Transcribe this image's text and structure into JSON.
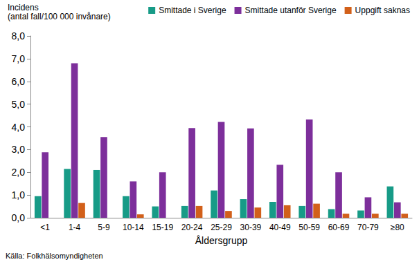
{
  "chart_data": {
    "type": "bar",
    "title": "Incidens",
    "subtitle": "(antal fall/100 000 invånare)",
    "x_label": "Åldersgrupp",
    "annotations": [
      "Källa: Folkhälsomyndigheten"
    ],
    "categories": [
      "<1",
      "1-4",
      "5-9",
      "10-14",
      "15-19",
      "20-24",
      "25-29",
      "30-39",
      "40-49",
      "50-59",
      "60-69",
      "70-79",
      "≥80"
    ],
    "series": [
      {
        "name": "Smittade i Sverige",
        "color": "#179b87",
        "values": [
          0.95,
          2.15,
          2.1,
          0.95,
          0.5,
          0.52,
          1.2,
          0.82,
          0.7,
          0.52,
          0.38,
          0.32,
          1.38
        ]
      },
      {
        "name": "Smittade utanför Sverige",
        "color": "#7d2f9b",
        "values": [
          2.88,
          6.8,
          3.55,
          1.6,
          2.0,
          3.95,
          4.22,
          3.93,
          2.33,
          4.33,
          2.0,
          0.9,
          0.68
        ]
      },
      {
        "name": "Uppgift saknas",
        "color": "#d2601a",
        "values": [
          0,
          0.65,
          0,
          0.15,
          0,
          0.52,
          0.3,
          0.45,
          0.55,
          0.62,
          0.18,
          0.18,
          0.18
        ]
      }
    ],
    "ylim": [
      0,
      8
    ],
    "yticks": [
      {
        "value": 0,
        "label": "0,0"
      },
      {
        "value": 1,
        "label": "1,0"
      },
      {
        "value": 2,
        "label": "2,0"
      },
      {
        "value": 3,
        "label": "3,0"
      },
      {
        "value": 4,
        "label": "4,0"
      },
      {
        "value": 5,
        "label": "5,0"
      },
      {
        "value": 6,
        "label": "6,0"
      },
      {
        "value": 7,
        "label": "7,0"
      },
      {
        "value": 8,
        "label": "8,0"
      }
    ],
    "grid": false,
    "legend": "top-right"
  }
}
